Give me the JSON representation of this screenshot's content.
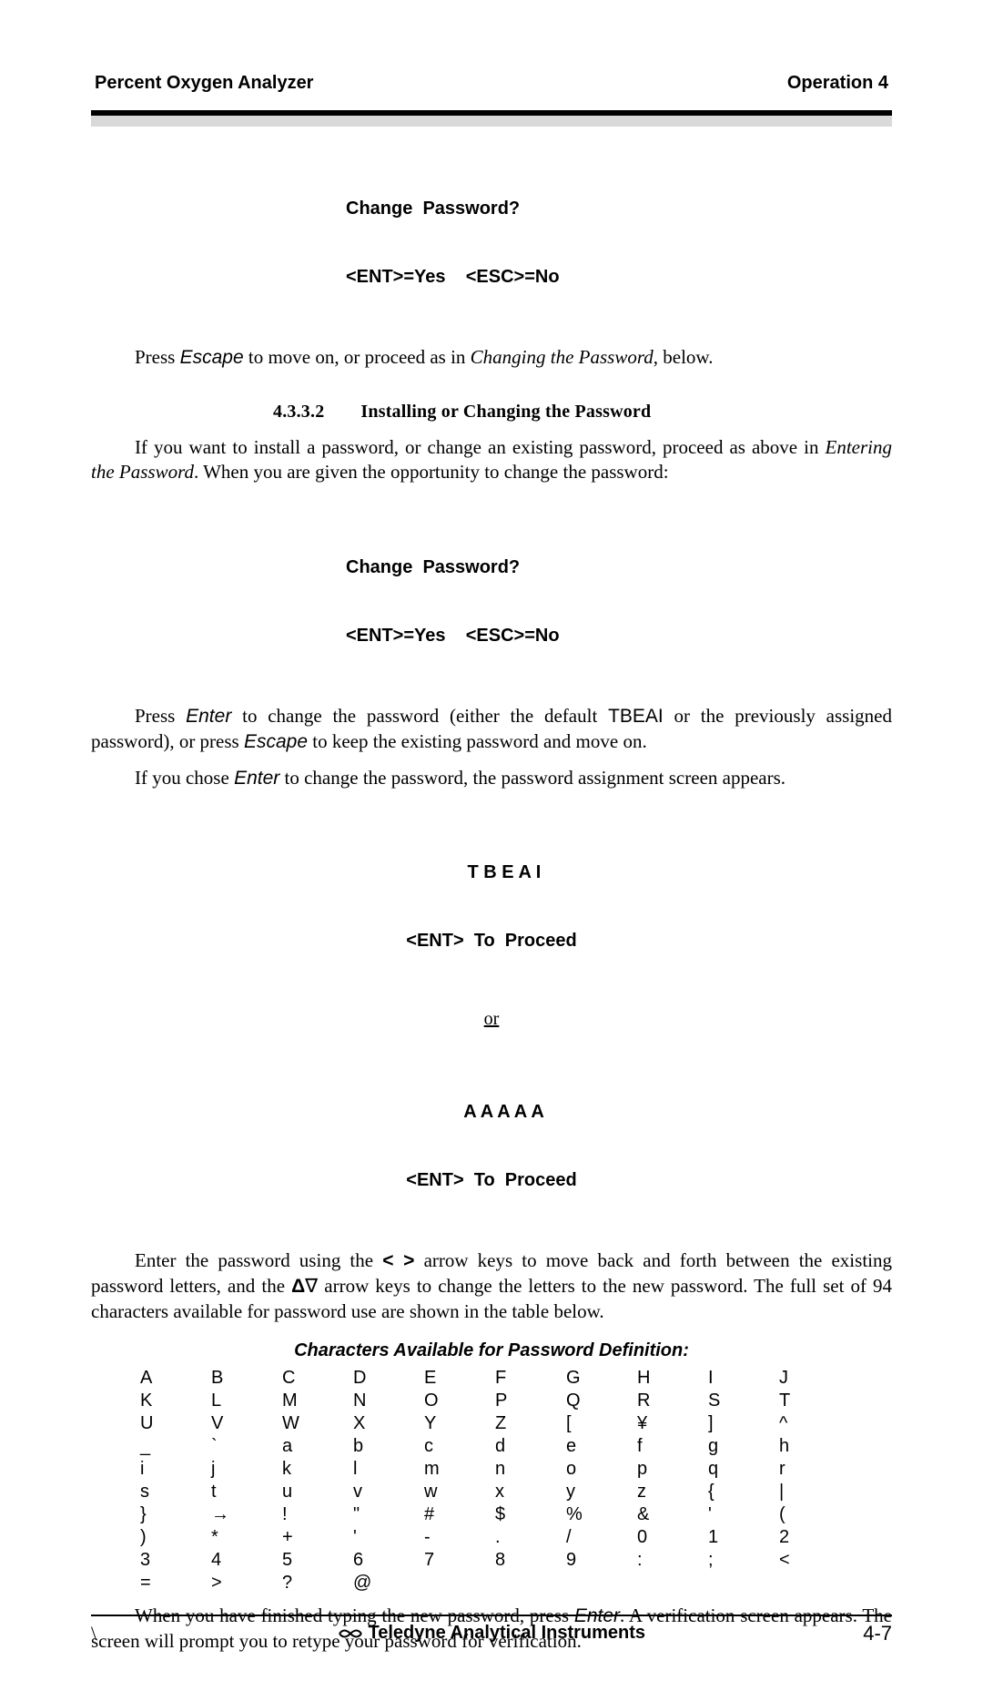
{
  "header": {
    "left": "Percent Oxygen Analyzer",
    "right": "Operation  4"
  },
  "display1": {
    "line1": "Change  Password?",
    "line2": "<ENT>=Yes    <ESC>=No"
  },
  "para1_a": "Press ",
  "para1_key": "Escape",
  "para1_b": " to move on, or proceed as in ",
  "para1_em": "Changing the Password",
  "para1_c": ", below.",
  "section": {
    "num": "4.3.3.2",
    "title": "Installing or Changing the Password"
  },
  "para2_a": "If you want to install a password, or change an existing password, proceed as above in ",
  "para2_em": "Entering the Password",
  "para2_b": ". When you are given the opportunity to change the password:",
  "display2": {
    "line1": "Change  Password?",
    "line2": "<ENT>=Yes    <ESC>=No"
  },
  "para3_a": "Press ",
  "para3_key1": "Enter",
  "para3_b": " to change the password (either the default ",
  "para3_sans": "TBEAI",
  "para3_c": " or the previously assigned password), or press ",
  "para3_key2": "Escape",
  "para3_d": " to keep the existing password and move on.",
  "para4_a": "If you chose ",
  "para4_key": "Enter",
  "para4_b": " to change the password, the password assignment screen appears.",
  "display3": {
    "line1": "     T B E A I",
    "line2": "<ENT>  To  Proceed"
  },
  "or_text": "or",
  "display4": {
    "line1": "     A A A A A",
    "line2": "<ENT>  To  Proceed"
  },
  "para5_a": " Enter the password using the ",
  "para5_sans1": "< >",
  "para5_b": " arrow keys to move back and forth between the existing password letters, and the ",
  "para5_sans2_html": "<b>Δ</b>∇",
  "para5_c": " arrow keys to change the letters to the new password. The full set of 94 characters available for password use are shown in the table below.",
  "table": {
    "caption": "Characters Available for Password Definition:",
    "rows": [
      [
        "A",
        "B",
        "C",
        "D",
        "E",
        "F",
        "G",
        "H",
        "I",
        "J"
      ],
      [
        "K",
        "L",
        "M",
        "N",
        "O",
        "P",
        "Q",
        "R",
        "S",
        "T"
      ],
      [
        "U",
        "V",
        "W",
        "X",
        "Y",
        "Z",
        "[",
        "¥",
        "]",
        "^"
      ],
      [
        "_",
        "`",
        "a",
        "b",
        "c",
        "d",
        "e",
        "f",
        "g",
        "h"
      ],
      [
        "i",
        "j",
        "k",
        "l",
        "m",
        "n",
        "o",
        "p",
        "q",
        "r"
      ],
      [
        "s",
        "t",
        "u",
        "v",
        "w",
        "x",
        "y",
        "z",
        "{",
        "|"
      ],
      [
        "}",
        "→",
        "!",
        "\"",
        "#",
        "$",
        "%",
        "&",
        "'",
        "("
      ],
      [
        ")",
        "*",
        "+",
        "'",
        "-",
        ".",
        "/",
        "0",
        "1",
        "2"
      ],
      [
        "3",
        "4",
        "5",
        "6",
        "7",
        "8",
        "9",
        ":",
        ";",
        "<"
      ],
      [
        "=",
        ">",
        "?",
        "@",
        "",
        "",
        "",
        "",
        "",
        ""
      ]
    ]
  },
  "para6_a": "When you have finished typing the new password, press ",
  "para6_key": "Enter",
  "para6_b": ". A verification screen appears. The screen will prompt you to retype your password for verification.",
  "footer": {
    "left": "\\",
    "center": "Teledyne Analytical Instruments",
    "right": "4-7"
  }
}
